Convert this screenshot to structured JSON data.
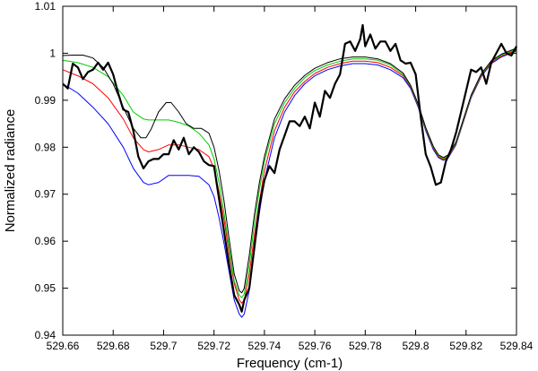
{
  "chart_data": {
    "type": "line",
    "title": "",
    "xlabel": "Frequency (cm-1)",
    "ylabel": "Normalized radiance",
    "xlim": [
      529.66,
      529.84
    ],
    "ylim": [
      0.94,
      1.01
    ],
    "x_ticks": [
      529.66,
      529.68,
      529.7,
      529.72,
      529.74,
      529.76,
      529.78,
      529.8,
      529.82,
      529.84
    ],
    "x_tick_labels": [
      "529.66",
      "529.68",
      "529.7",
      "529.72",
      "529.74",
      "529.76",
      "529.78",
      "529.8",
      "529.82",
      "529.84"
    ],
    "y_ticks": [
      0.94,
      0.95,
      0.96,
      0.97,
      0.98,
      0.99,
      1.0,
      1.01
    ],
    "y_tick_labels": [
      "0.94",
      "0.95",
      "0.96",
      "0.97",
      "0.98",
      "0.99",
      "1",
      "1.01"
    ],
    "grid": false,
    "legend": "none",
    "series": [
      {
        "color": "#0000ff",
        "width": 1,
        "x": [
          529.66,
          529.666,
          529.672,
          529.678,
          529.684,
          529.688,
          529.692,
          529.694,
          529.698,
          529.702,
          529.706,
          529.71,
          529.714,
          529.718,
          529.72,
          529.722,
          529.724,
          529.726,
          529.728,
          529.73,
          529.731,
          529.732,
          529.734,
          529.736,
          529.738,
          529.74,
          529.744,
          529.748,
          529.752,
          529.756,
          529.76,
          529.765,
          529.77,
          529.775,
          529.78,
          529.785,
          529.79,
          529.795,
          529.798,
          529.801,
          529.804,
          529.807,
          529.809,
          529.811,
          529.813,
          529.816,
          529.819,
          529.822,
          529.826,
          529.83,
          529.834,
          529.84
        ],
        "y": [
          0.9935,
          0.9915,
          0.9885,
          0.985,
          0.98,
          0.9755,
          0.9725,
          0.972,
          0.9725,
          0.974,
          0.974,
          0.974,
          0.9738,
          0.972,
          0.9695,
          0.965,
          0.9595,
          0.9535,
          0.9475,
          0.9445,
          0.9438,
          0.9445,
          0.9495,
          0.958,
          0.966,
          0.973,
          0.982,
          0.9875,
          0.991,
          0.9935,
          0.9952,
          0.9965,
          0.9973,
          0.9978,
          0.9978,
          0.9975,
          0.9965,
          0.9948,
          0.9925,
          0.9885,
          0.9835,
          0.9795,
          0.9778,
          0.9772,
          0.9778,
          0.9805,
          0.9855,
          0.9905,
          0.995,
          0.9978,
          0.9992,
          1.0005
        ]
      },
      {
        "color": "#ff0000",
        "width": 1,
        "x": [
          529.66,
          529.666,
          529.672,
          529.678,
          529.684,
          529.688,
          529.692,
          529.694,
          529.698,
          529.702,
          529.706,
          529.71,
          529.714,
          529.718,
          529.72,
          529.722,
          529.724,
          529.726,
          529.728,
          529.73,
          529.731,
          529.732,
          529.734,
          529.736,
          529.738,
          529.74,
          529.744,
          529.748,
          529.752,
          529.756,
          529.76,
          529.765,
          529.77,
          529.775,
          529.78,
          529.785,
          529.79,
          529.795,
          529.798,
          529.801,
          529.804,
          529.807,
          529.809,
          529.811,
          529.813,
          529.816,
          529.819,
          529.822,
          529.826,
          529.83,
          529.834,
          529.84
        ],
        "y": [
          0.9965,
          0.9952,
          0.9935,
          0.9905,
          0.986,
          0.982,
          0.9795,
          0.979,
          0.9795,
          0.9805,
          0.9805,
          0.98,
          0.9795,
          0.978,
          0.9755,
          0.9705,
          0.9645,
          0.9575,
          0.951,
          0.9475,
          0.9468,
          0.9475,
          0.953,
          0.961,
          0.9685,
          0.975,
          0.9835,
          0.9885,
          0.9918,
          0.994,
          0.9957,
          0.997,
          0.9978,
          0.9983,
          0.9983,
          0.998,
          0.997,
          0.9952,
          0.9928,
          0.9888,
          0.9838,
          0.9798,
          0.978,
          0.9774,
          0.978,
          0.9807,
          0.9857,
          0.9907,
          0.9952,
          0.998,
          0.9994,
          1.0007
        ]
      },
      {
        "color": "#00cc00",
        "width": 1,
        "x": [
          529.66,
          529.666,
          529.672,
          529.678,
          529.684,
          529.688,
          529.692,
          529.694,
          529.698,
          529.702,
          529.706,
          529.71,
          529.714,
          529.718,
          529.72,
          529.722,
          529.724,
          529.726,
          529.728,
          529.73,
          529.731,
          529.732,
          529.734,
          529.736,
          529.738,
          529.74,
          529.744,
          529.748,
          529.752,
          529.756,
          529.76,
          529.765,
          529.77,
          529.775,
          529.78,
          529.785,
          529.79,
          529.795,
          529.798,
          529.801,
          529.804,
          529.807,
          529.809,
          529.811,
          529.813,
          529.816,
          529.819,
          529.822,
          529.826,
          529.83,
          529.834,
          529.84
        ],
        "y": [
          0.9985,
          0.998,
          0.997,
          0.995,
          0.991,
          0.9875,
          0.986,
          0.9858,
          0.9858,
          0.9858,
          0.9853,
          0.9845,
          0.983,
          0.9805,
          0.9775,
          0.9725,
          0.966,
          0.9585,
          0.9515,
          0.9485,
          0.948,
          0.9488,
          0.955,
          0.9635,
          0.971,
          0.977,
          0.985,
          0.9895,
          0.9925,
          0.9948,
          0.9963,
          0.9975,
          0.9983,
          0.9988,
          0.9988,
          0.9985,
          0.9975,
          0.9955,
          0.993,
          0.989,
          0.984,
          0.98,
          0.9782,
          0.9776,
          0.9782,
          0.9809,
          0.9859,
          0.9909,
          0.9954,
          0.9982,
          0.9996,
          1.0009
        ]
      },
      {
        "color": "#000000",
        "width": 1,
        "x": [
          529.66,
          529.664,
          529.668,
          529.672,
          529.676,
          529.68,
          529.684,
          529.688,
          529.691,
          529.693,
          529.695,
          529.698,
          529.701,
          529.703,
          529.706,
          529.709,
          529.712,
          529.715,
          529.718,
          529.72,
          529.722,
          529.724,
          529.726,
          529.728,
          529.73,
          529.731,
          529.732,
          529.734,
          529.736,
          529.738,
          529.74,
          529.744,
          529.748,
          529.752,
          529.756,
          529.76,
          529.765,
          529.77,
          529.775,
          529.78,
          529.785,
          529.79,
          529.795,
          529.798,
          529.801,
          529.804,
          529.807,
          529.809,
          529.811,
          529.813,
          529.816,
          529.819,
          529.822,
          529.826,
          529.83,
          529.834,
          529.84
        ],
        "y": [
          0.9995,
          0.9996,
          0.9996,
          0.999,
          0.997,
          0.9935,
          0.9885,
          0.984,
          0.982,
          0.982,
          0.9838,
          0.9875,
          0.9895,
          0.9895,
          0.9875,
          0.985,
          0.984,
          0.984,
          0.983,
          0.98,
          0.975,
          0.9685,
          0.9605,
          0.953,
          0.9495,
          0.949,
          0.95,
          0.957,
          0.9655,
          0.9725,
          0.978,
          0.986,
          0.9903,
          0.9932,
          0.9953,
          0.9968,
          0.998,
          0.9988,
          0.9992,
          0.9992,
          0.9988,
          0.9978,
          0.9958,
          0.9932,
          0.9892,
          0.9842,
          0.9802,
          0.9784,
          0.9778,
          0.9784,
          0.9811,
          0.9861,
          0.9911,
          0.9956,
          0.9984,
          0.9998,
          1.0011
        ]
      },
      {
        "color": "#000000",
        "width": 2.2,
        "x": [
          529.66,
          529.662,
          529.664,
          529.666,
          529.668,
          529.67,
          529.672,
          529.674,
          529.676,
          529.678,
          529.68,
          529.682,
          529.684,
          529.686,
          529.688,
          529.69,
          529.692,
          529.694,
          529.696,
          529.698,
          529.7,
          529.702,
          529.704,
          529.706,
          529.708,
          529.71,
          529.712,
          529.714,
          529.716,
          529.718,
          529.72,
          529.722,
          529.724,
          529.726,
          529.728,
          529.73,
          529.731,
          529.732,
          529.734,
          529.736,
          529.738,
          529.74,
          529.742,
          529.744,
          529.746,
          529.748,
          529.75,
          529.752,
          529.754,
          529.756,
          529.758,
          529.76,
          529.762,
          529.764,
          529.766,
          529.768,
          529.77,
          529.772,
          529.774,
          529.776,
          529.778,
          529.779,
          529.78,
          529.782,
          529.784,
          529.786,
          529.788,
          529.79,
          529.792,
          529.794,
          529.796,
          529.798,
          529.8,
          529.802,
          529.804,
          529.806,
          529.808,
          529.81,
          529.812,
          529.814,
          529.816,
          529.818,
          529.82,
          529.822,
          529.824,
          529.826,
          529.828,
          529.83,
          529.832,
          529.834,
          529.836,
          529.838,
          529.84
        ],
        "y": [
          0.9935,
          0.9925,
          0.9978,
          0.997,
          0.9945,
          0.996,
          0.9965,
          0.998,
          0.9965,
          0.998,
          0.9955,
          0.9915,
          0.988,
          0.9875,
          0.9835,
          0.978,
          0.9755,
          0.977,
          0.9775,
          0.9775,
          0.9785,
          0.9785,
          0.9815,
          0.9795,
          0.982,
          0.9785,
          0.98,
          0.979,
          0.977,
          0.9762,
          0.976,
          0.969,
          0.962,
          0.955,
          0.9485,
          0.9465,
          0.945,
          0.9475,
          0.95,
          0.9585,
          0.9675,
          0.973,
          0.976,
          0.9745,
          0.9795,
          0.9825,
          0.9855,
          0.9855,
          0.9845,
          0.9865,
          0.984,
          0.9895,
          0.9865,
          0.992,
          0.9905,
          0.9935,
          0.9955,
          1.002,
          1.0025,
          1.0005,
          1.003,
          1.006,
          1.0015,
          1.004,
          1.001,
          1.0025,
          1.0025,
          1.0005,
          1.002,
          0.9985,
          0.9978,
          0.998,
          0.9955,
          0.9865,
          0.9785,
          0.9758,
          0.972,
          0.9725,
          0.977,
          0.9795,
          0.983,
          0.9875,
          0.992,
          0.9965,
          0.996,
          0.997,
          0.9935,
          0.998,
          1.0,
          1.002,
          1.0,
          0.9995,
          1.0015
        ]
      }
    ]
  }
}
